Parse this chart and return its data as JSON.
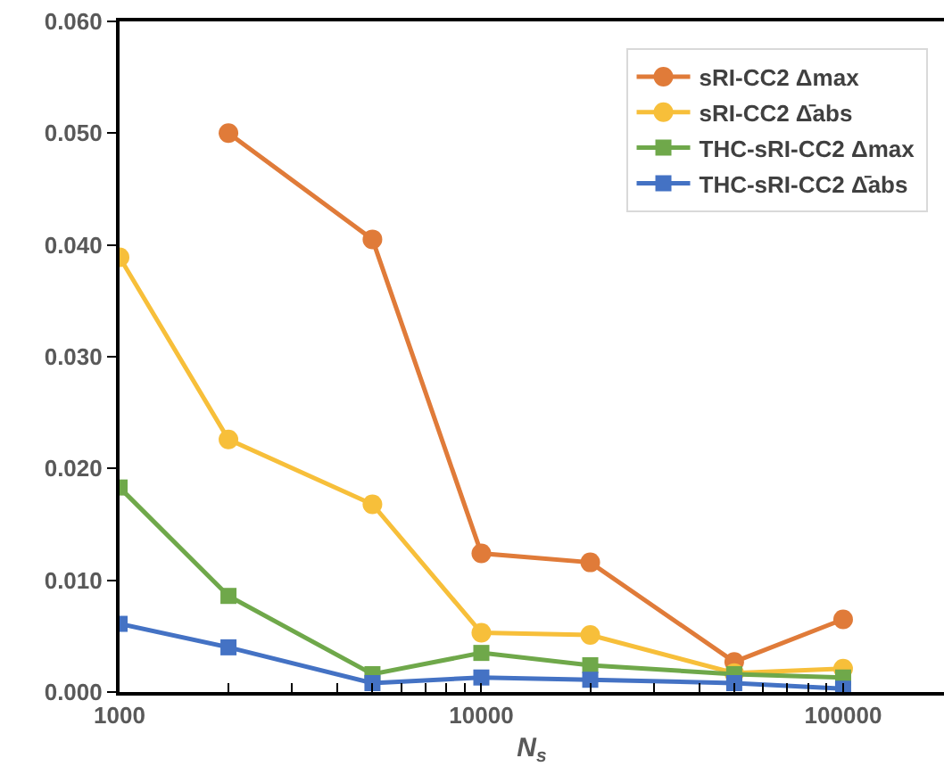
{
  "chart_data": {
    "type": "line",
    "xlabel": "N$_{s}$",
    "log": "x",
    "grid": false,
    "legend": "top right",
    "line_style": "solid",
    "x": [
      1000,
      2000,
      5000,
      10000,
      20000,
      50000,
      100000
    ],
    "xlim": [
      1000,
      190000
    ],
    "xticks": [
      1000,
      {
        "value": 2000,
        "label": null
      },
      {
        "value": 3000,
        "label": null
      },
      {
        "value": 4000,
        "label": null
      },
      {
        "value": 5000,
        "label": null
      },
      {
        "value": 6000,
        "label": null
      },
      {
        "value": 7000,
        "label": null
      },
      {
        "value": 8000,
        "label": null
      },
      {
        "value": 9000,
        "label": null
      },
      10000,
      {
        "value": 20000,
        "label": null
      },
      {
        "value": 30000,
        "label": null
      },
      {
        "value": 40000,
        "label": null
      },
      {
        "value": 50000,
        "label": null
      },
      {
        "value": 60000,
        "label": null
      },
      {
        "value": 70000,
        "label": null
      },
      {
        "value": 80000,
        "label": null
      },
      {
        "value": 90000,
        "label": null
      },
      100000
    ],
    "ylim": [
      0,
      0.06
    ],
    "yticks": [
      {
        "value": 0,
        "label": "0.000"
      },
      {
        "value": 0.01,
        "label": "0.010"
      },
      {
        "value": 0.02,
        "label": "0.020"
      },
      {
        "value": 0.03,
        "label": "0.030"
      },
      {
        "value": 0.04,
        "label": "0.040"
      },
      {
        "value": 0.05,
        "label": "0.050"
      },
      {
        "value": 0.06,
        "label": "0.060"
      }
    ],
    "series": [
      {
        "name": "sRI-CC2 Δmax",
        "color": "#e07b39",
        "marker": "circle",
        "values": [
          null,
          0.05,
          0.0405,
          0.0124,
          0.0116,
          0.0027,
          0.0065
        ]
      },
      {
        "name": "sRI-CC2 Δ̄abs",
        "color": "#f7bf3a",
        "marker": "circle",
        "values": [
          0.0389,
          0.0226,
          0.0168,
          0.0053,
          0.0051,
          0.0017,
          0.0021
        ]
      },
      {
        "name": "THC-sRI-CC2 Δmax",
        "color": "#6fa84a",
        "marker": "square",
        "values": [
          0.0183,
          0.0086,
          0.0016,
          0.0035,
          0.0024,
          0.0016,
          0.0013
        ]
      },
      {
        "name": "THC-sRI-CC2 Δ̄abs",
        "color": "#4472c4",
        "marker": "square",
        "values": [
          0.0061,
          0.004,
          0.0008,
          0.0013,
          0.0011,
          0.0008,
          0.0003
        ]
      }
    ]
  }
}
